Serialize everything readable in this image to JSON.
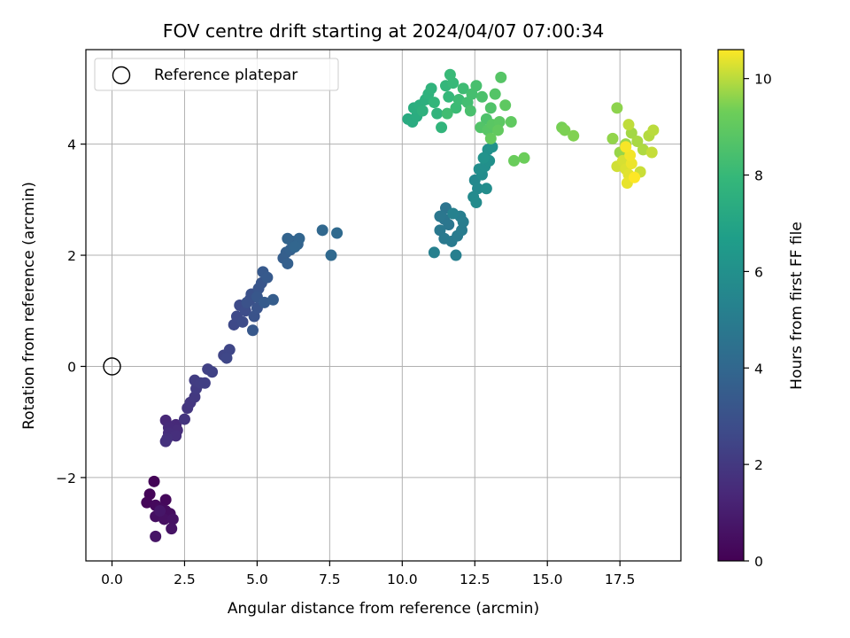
{
  "chart_data": {
    "type": "scatter",
    "title": "FOV centre drift starting at 2024/04/07 07:00:34",
    "xlabel": "Angular distance from reference (arcmin)",
    "ylabel": "Rotation from reference (arcmin)",
    "xlim": [
      -0.9,
      19.6
    ],
    "ylim": [
      -3.5,
      5.7
    ],
    "xticks": [
      0.0,
      2.5,
      5.0,
      7.5,
      10.0,
      12.5,
      15.0,
      17.5
    ],
    "xtick_labels": [
      "0.0",
      "2.5",
      "5.0",
      "7.5",
      "10.0",
      "12.5",
      "15.0",
      "17.5"
    ],
    "yticks": [
      -2,
      0,
      2,
      4
    ],
    "ytick_labels": [
      "−2",
      "0",
      "2",
      "4"
    ],
    "grid": true,
    "legend": {
      "placement": "top-left",
      "entries": [
        "Reference platepar"
      ]
    },
    "reference_point": {
      "x": 0,
      "y": 0,
      "label": "Reference platepar"
    },
    "colorbar": {
      "label": "Hours from first FF file",
      "colormap": "viridis",
      "range": [
        0,
        10.6
      ],
      "ticks": [
        0,
        2,
        4,
        6,
        8,
        10
      ],
      "tick_labels": [
        "0",
        "2",
        "4",
        "6",
        "8",
        "10"
      ]
    },
    "points": [
      [
        1.45,
        -2.07,
        0.1
      ],
      [
        1.3,
        -2.3,
        0.15
      ],
      [
        1.2,
        -2.45,
        0.2
      ],
      [
        1.85,
        -2.4,
        0.25
      ],
      [
        1.5,
        -2.5,
        0.3
      ],
      [
        1.65,
        -2.55,
        0.35
      ],
      [
        1.85,
        -2.6,
        0.4
      ],
      [
        2.0,
        -2.65,
        0.45
      ],
      [
        1.5,
        -2.7,
        0.5
      ],
      [
        1.8,
        -2.75,
        0.55
      ],
      [
        2.1,
        -2.75,
        0.6
      ],
      [
        2.05,
        -2.92,
        0.65
      ],
      [
        1.5,
        -3.06,
        0.7
      ],
      [
        1.65,
        -2.6,
        0.75
      ],
      [
        1.85,
        -0.97,
        1.4
      ],
      [
        2.2,
        -1.05,
        1.45
      ],
      [
        1.95,
        -1.1,
        1.5
      ],
      [
        2.25,
        -1.15,
        1.55
      ],
      [
        1.95,
        -1.2,
        1.6
      ],
      [
        2.2,
        -1.25,
        1.65
      ],
      [
        1.9,
        -1.3,
        1.7
      ],
      [
        1.85,
        -1.35,
        1.75
      ],
      [
        2.5,
        -0.95,
        1.85
      ],
      [
        2.6,
        -0.75,
        1.9
      ],
      [
        2.7,
        -0.65,
        1.95
      ],
      [
        2.85,
        -0.55,
        2.0
      ],
      [
        2.9,
        -0.4,
        2.1
      ],
      [
        2.85,
        -0.25,
        2.15
      ],
      [
        3.05,
        -0.3,
        2.2
      ],
      [
        3.2,
        -0.3,
        2.25
      ],
      [
        3.3,
        -0.05,
        2.3
      ],
      [
        3.45,
        -0.1,
        2.35
      ],
      [
        3.85,
        0.2,
        2.45
      ],
      [
        4.05,
        0.3,
        2.5
      ],
      [
        3.95,
        0.15,
        2.55
      ],
      [
        4.2,
        0.75,
        2.6
      ],
      [
        4.3,
        0.9,
        2.65
      ],
      [
        4.4,
        1.1,
        2.7
      ],
      [
        4.5,
        0.8,
        2.75
      ],
      [
        4.6,
        1.0,
        2.8
      ],
      [
        4.75,
        1.2,
        2.9
      ],
      [
        4.8,
        1.3,
        2.95
      ],
      [
        4.65,
        1.15,
        3.0
      ],
      [
        4.9,
        0.9,
        3.05
      ],
      [
        5.0,
        1.05,
        3.1
      ],
      [
        5.05,
        1.4,
        3.15
      ],
      [
        5.15,
        1.5,
        3.2
      ],
      [
        5.0,
        1.25,
        3.25
      ],
      [
        4.85,
        0.65,
        3.3
      ],
      [
        5.2,
        1.7,
        3.35
      ],
      [
        5.35,
        1.6,
        3.4
      ],
      [
        5.25,
        1.15,
        3.45
      ],
      [
        5.55,
        1.2,
        3.5
      ],
      [
        5.9,
        1.95,
        3.55
      ],
      [
        6.0,
        2.05,
        3.6
      ],
      [
        6.05,
        1.85,
        3.65
      ],
      [
        6.15,
        2.1,
        3.7
      ],
      [
        6.2,
        2.25,
        3.75
      ],
      [
        6.4,
        2.2,
        3.8
      ],
      [
        6.05,
        2.3,
        3.85
      ],
      [
        6.45,
        2.3,
        3.9
      ],
      [
        6.3,
        2.15,
        3.95
      ],
      [
        7.25,
        2.45,
        4.05
      ],
      [
        7.55,
        2.0,
        4.1
      ],
      [
        7.75,
        2.4,
        4.15
      ],
      [
        11.5,
        2.85,
        4.6
      ],
      [
        11.45,
        2.65,
        4.65
      ],
      [
        11.6,
        2.55,
        4.7
      ],
      [
        11.3,
        2.7,
        4.75
      ],
      [
        11.3,
        2.45,
        4.8
      ],
      [
        11.45,
        2.3,
        4.85
      ],
      [
        11.7,
        2.25,
        4.9
      ],
      [
        11.9,
        2.35,
        4.95
      ],
      [
        12.05,
        2.45,
        5.0
      ],
      [
        12.1,
        2.6,
        5.05
      ],
      [
        12.0,
        2.7,
        5.1
      ],
      [
        11.85,
        2.0,
        5.15
      ],
      [
        11.1,
        2.05,
        5.2
      ],
      [
        11.75,
        2.75,
        5.25
      ],
      [
        12.5,
        3.35,
        5.6
      ],
      [
        12.6,
        3.2,
        5.65
      ],
      [
        12.45,
        3.05,
        5.7
      ],
      [
        12.55,
        2.95,
        5.75
      ],
      [
        12.75,
        3.45,
        5.8
      ],
      [
        12.9,
        3.2,
        5.85
      ],
      [
        12.65,
        3.55,
        5.9
      ],
      [
        12.85,
        3.6,
        5.95
      ],
      [
        13.0,
        3.7,
        6.0
      ],
      [
        12.95,
        3.9,
        6.05
      ],
      [
        13.1,
        3.95,
        6.1
      ],
      [
        12.8,
        3.75,
        6.15
      ],
      [
        10.2,
        4.45,
        7.3
      ],
      [
        10.35,
        4.4,
        7.35
      ],
      [
        10.5,
        4.5,
        7.4
      ],
      [
        10.4,
        4.65,
        7.45
      ],
      [
        10.6,
        4.7,
        7.5
      ],
      [
        10.8,
        4.8,
        7.55
      ],
      [
        10.7,
        4.6,
        7.6
      ],
      [
        10.9,
        4.9,
        7.65
      ],
      [
        11.0,
        5.0,
        7.7
      ],
      [
        11.2,
        4.55,
        7.75
      ],
      [
        11.35,
        4.3,
        7.8
      ],
      [
        11.1,
        4.75,
        7.85
      ],
      [
        11.5,
        5.05,
        7.9
      ],
      [
        11.6,
        4.85,
        7.95
      ],
      [
        11.75,
        5.1,
        8.0
      ],
      [
        11.65,
        5.25,
        8.05
      ],
      [
        11.85,
        4.65,
        8.1
      ],
      [
        11.95,
        4.8,
        8.15
      ],
      [
        12.1,
        5.0,
        8.2
      ],
      [
        11.55,
        4.55,
        8.25
      ],
      [
        12.25,
        4.75,
        8.3
      ],
      [
        12.4,
        4.9,
        8.35
      ],
      [
        12.55,
        5.05,
        8.4
      ],
      [
        12.35,
        4.6,
        8.45
      ],
      [
        12.75,
        4.85,
        8.5
      ],
      [
        12.9,
        4.45,
        8.55
      ],
      [
        13.05,
        4.65,
        8.6
      ],
      [
        12.7,
        4.3,
        8.65
      ],
      [
        13.2,
        4.9,
        8.7
      ],
      [
        13.4,
        5.2,
        8.75
      ],
      [
        12.95,
        4.25,
        8.8
      ],
      [
        13.1,
        4.35,
        8.85
      ],
      [
        13.35,
        4.4,
        8.9
      ],
      [
        13.55,
        4.7,
        8.95
      ],
      [
        13.75,
        4.4,
        9.0
      ],
      [
        13.3,
        4.25,
        9.05
      ],
      [
        13.05,
        4.1,
        9.1
      ],
      [
        13.85,
        3.7,
        9.2
      ],
      [
        14.2,
        3.75,
        9.25
      ],
      [
        15.5,
        4.3,
        9.4
      ],
      [
        15.6,
        4.25,
        9.45
      ],
      [
        15.9,
        4.15,
        9.5
      ],
      [
        17.4,
        4.65,
        9.6
      ],
      [
        17.25,
        4.1,
        9.65
      ],
      [
        17.5,
        3.85,
        9.7
      ],
      [
        17.7,
        4.0,
        9.75
      ],
      [
        17.9,
        4.2,
        9.8
      ],
      [
        18.1,
        4.05,
        9.85
      ],
      [
        18.3,
        3.9,
        9.9
      ],
      [
        18.5,
        4.15,
        9.95
      ],
      [
        18.65,
        4.25,
        10.0
      ],
      [
        17.8,
        4.35,
        10.05
      ],
      [
        18.6,
        3.85,
        10.1
      ],
      [
        18.2,
        3.5,
        10.15
      ],
      [
        17.4,
        3.6,
        10.2
      ],
      [
        17.6,
        3.7,
        10.25
      ],
      [
        17.7,
        3.55,
        10.3
      ],
      [
        17.8,
        3.45,
        10.35
      ],
      [
        17.75,
        3.3,
        10.4
      ],
      [
        17.9,
        3.65,
        10.45
      ],
      [
        17.85,
        3.8,
        10.5
      ],
      [
        17.7,
        3.95,
        10.55
      ],
      [
        18.0,
        3.4,
        10.6
      ]
    ]
  }
}
